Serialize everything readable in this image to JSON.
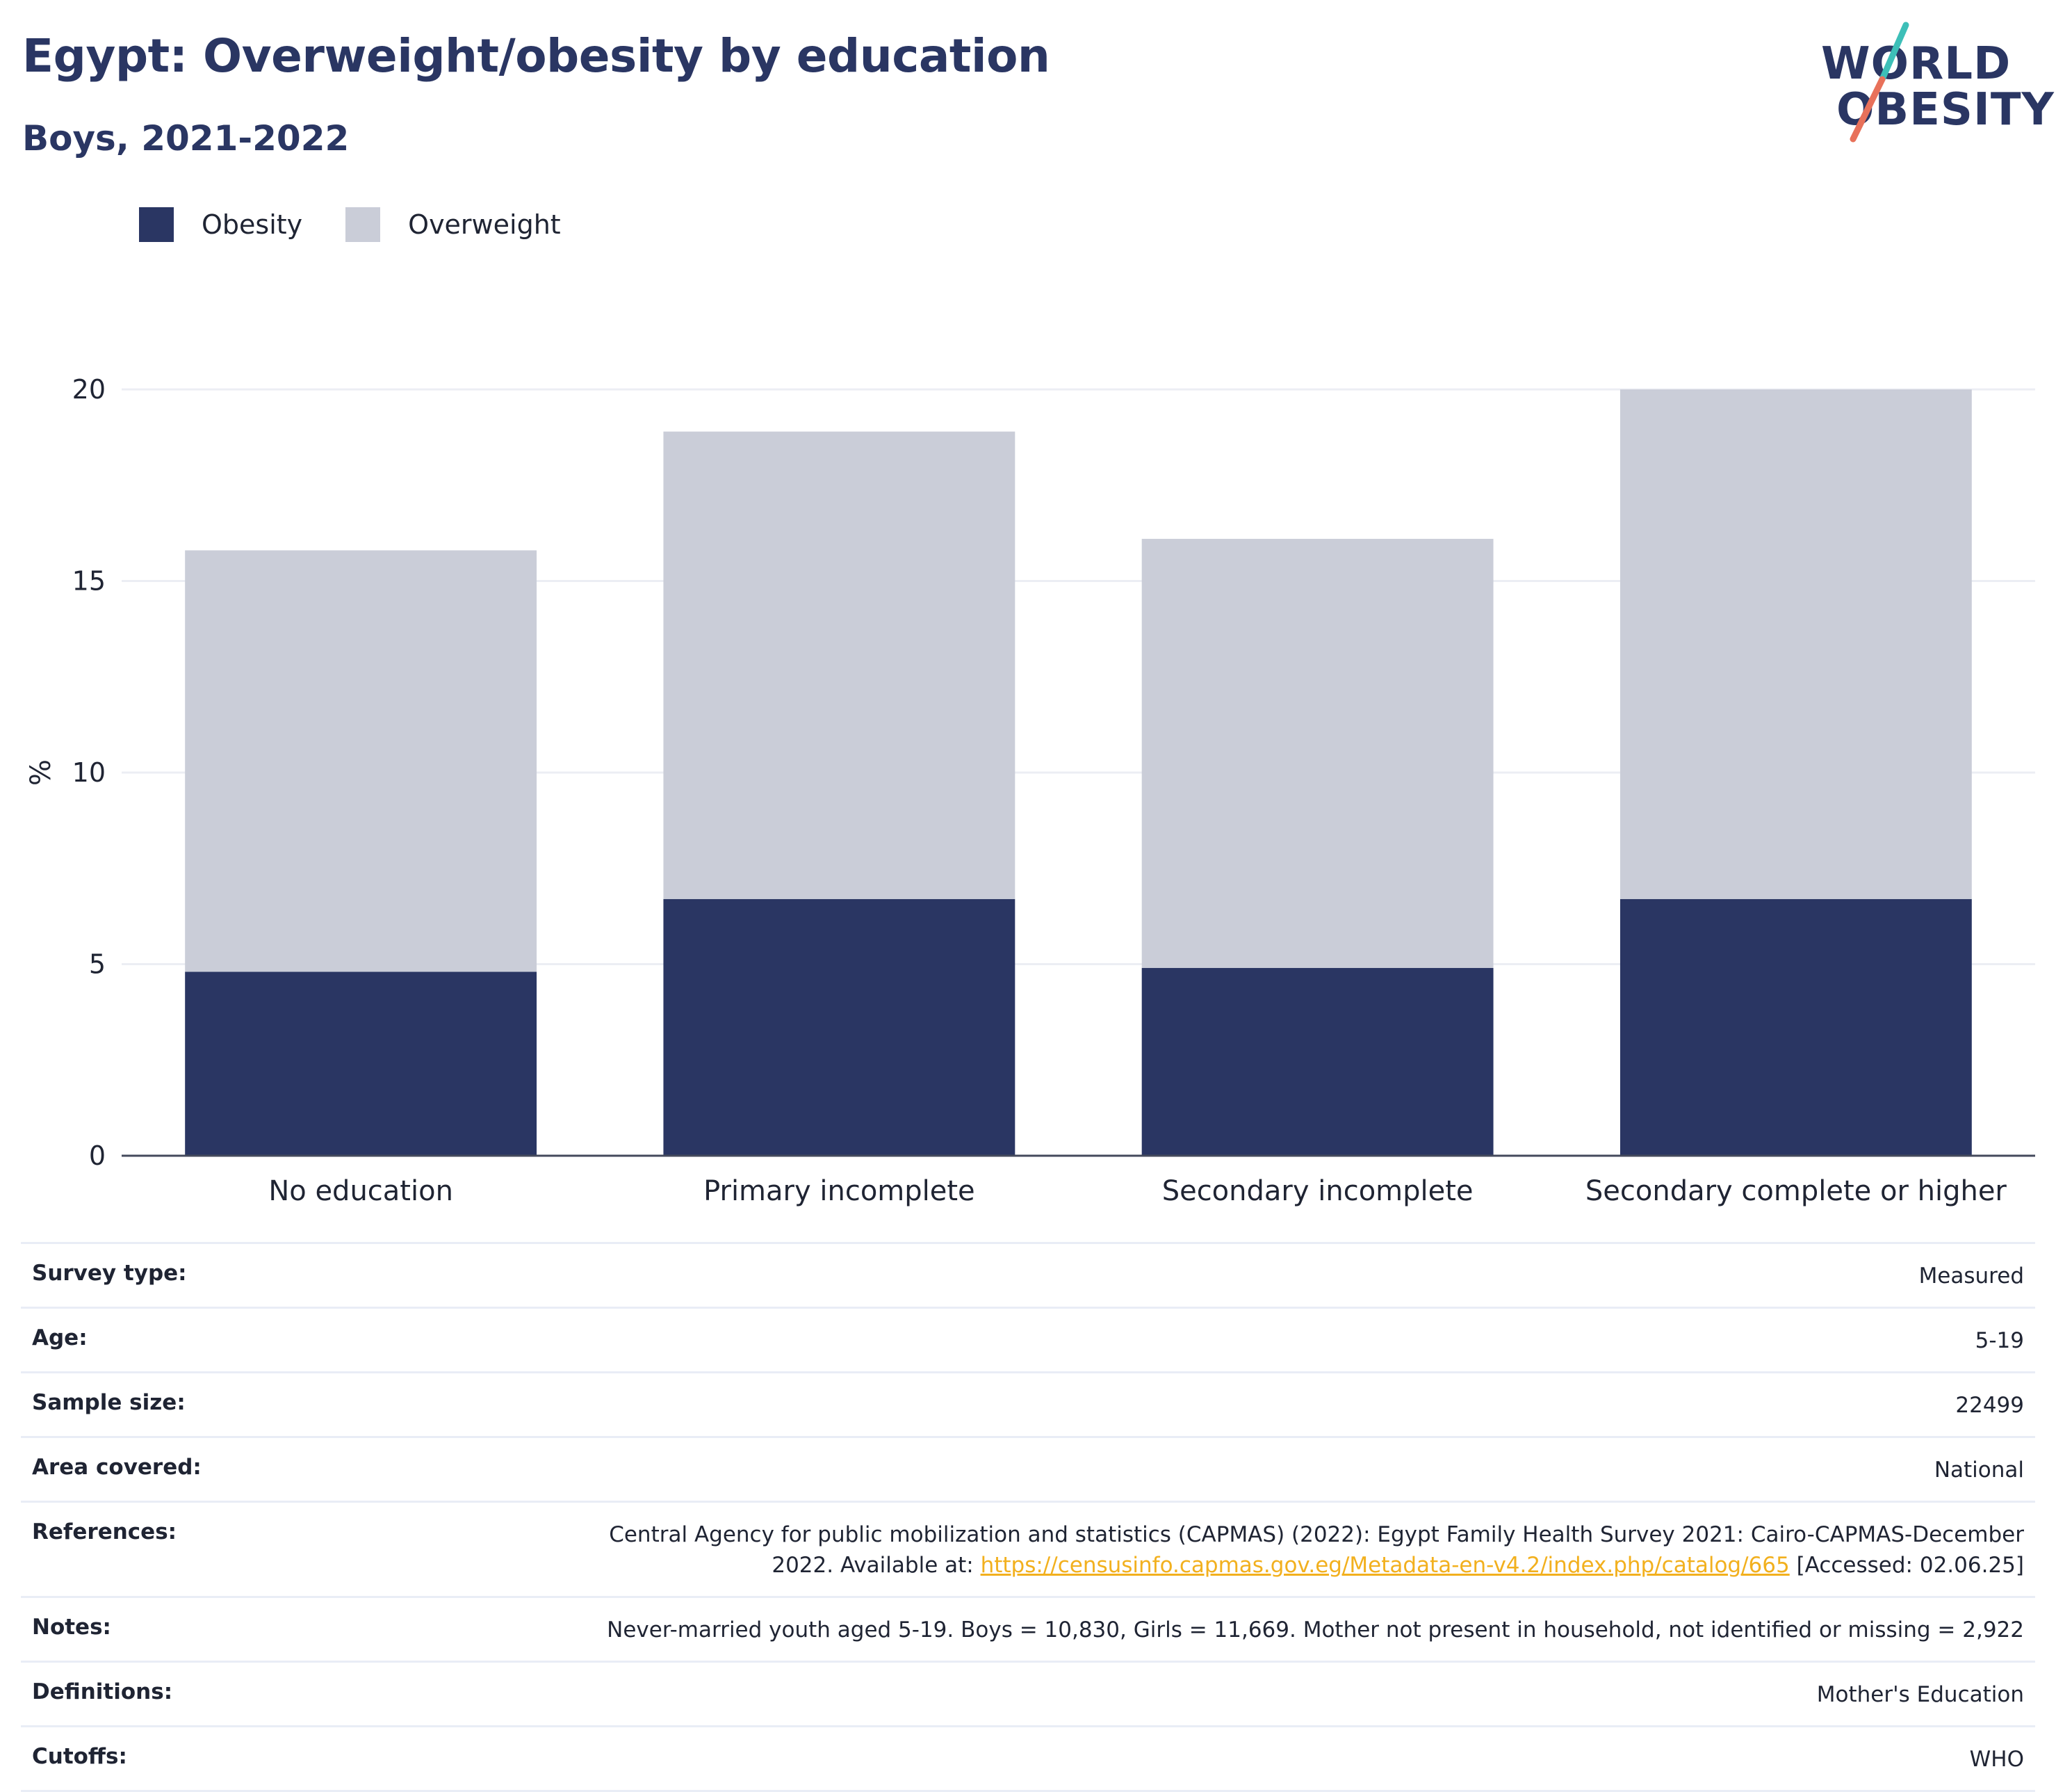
{
  "header": {
    "title": "Egypt: Overweight/obesity by education",
    "subtitle": "Boys, 2021-2022"
  },
  "logo": {
    "line1": "WORLD",
    "line2": "OBESITY"
  },
  "legend": [
    {
      "label": "Obesity",
      "color": "#2a3663"
    },
    {
      "label": "Overweight",
      "color": "#cacdd8"
    }
  ],
  "chart_data": {
    "type": "bar",
    "stacked": true,
    "categories": [
      "No education",
      "Primary incomplete",
      "Secondary incomplete",
      "Secondary complete or higher"
    ],
    "series": [
      {
        "name": "Obesity",
        "color": "#2a3663",
        "values": [
          4.8,
          6.7,
          4.9,
          6.7
        ]
      },
      {
        "name": "Overweight",
        "color": "#cacdd8",
        "values": [
          11.0,
          12.2,
          11.2,
          13.3
        ]
      }
    ],
    "ylabel": "%",
    "yticks": [
      0,
      5,
      10,
      15,
      20
    ],
    "ylim": [
      0,
      20
    ],
    "grid": true,
    "legend_position": "top-left"
  },
  "meta": {
    "survey_type": {
      "label": "Survey type:",
      "value": "Measured"
    },
    "age": {
      "label": "Age:",
      "value": "5-19"
    },
    "sample_size": {
      "label": "Sample size:",
      "value": "22499"
    },
    "area": {
      "label": "Area covered:",
      "value": "National"
    },
    "references": {
      "label": "References:",
      "text_before": "Central Agency for public mobilization and statistics (CAPMAS) (2022): Egypt Family Health Survey 2021: Cairo-CAPMAS-December 2022. Available at: ",
      "link": "https://censusinfo.capmas.gov.eg/Metadata-en-v4.2/index.php/catalog/665",
      "text_after": " [Accessed: 02.06.25]"
    },
    "notes": {
      "label": "Notes:",
      "value": "Never-married youth aged 5-19. Boys = 10,830, Girls = 11,669. Mother not present in household, not identified or missing = 2,922"
    },
    "definitions": {
      "label": "Definitions:",
      "value": "Mother's Education"
    },
    "cutoffs": {
      "label": "Cutoffs:",
      "value": "WHO"
    }
  }
}
